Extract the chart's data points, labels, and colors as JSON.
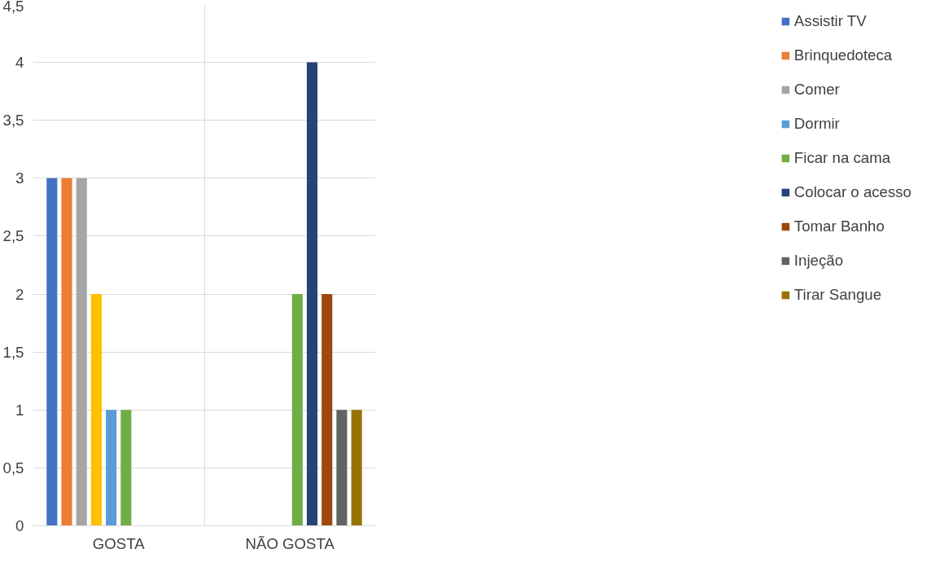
{
  "chart_data": {
    "type": "bar",
    "categories": [
      "GOSTA",
      "NÃO GOSTA"
    ],
    "series": [
      {
        "name": "Assistir TV",
        "color": "#4472c4",
        "values": [
          3,
          null
        ]
      },
      {
        "name": "Brinquedoteca",
        "color": "#ed7d31",
        "values": [
          3,
          null
        ]
      },
      {
        "name": "Comer",
        "color": "#a5a5a5",
        "values": [
          3,
          null
        ]
      },
      {
        "color": "#ffc000",
        "values": [
          2,
          null
        ]
      },
      {
        "name": "Dormir",
        "color": "#5b9bd5",
        "values": [
          1,
          null
        ]
      },
      {
        "name": "Ficar na cama",
        "color": "#70ad47",
        "values": [
          1,
          2
        ]
      },
      {
        "name": "Colocar o acesso",
        "color": "#264478",
        "values": [
          null,
          4
        ]
      },
      {
        "name": "Tomar Banho",
        "color": "#9e480e",
        "values": [
          null,
          2
        ]
      },
      {
        "name": "Injeção",
        "color": "#636363",
        "values": [
          null,
          1
        ]
      },
      {
        "name": "Tirar Sangue",
        "color": "#997300",
        "values": [
          null,
          1
        ]
      }
    ],
    "ylim": [
      0,
      4.5
    ],
    "yticks": [
      0,
      {
        "value": 0.5,
        "label": "0,5"
      },
      1,
      {
        "value": 1.5,
        "label": "1,5"
      },
      2,
      {
        "value": 2.5,
        "label": "2,5"
      },
      3,
      {
        "value": 3.5,
        "label": "3,5"
      },
      4,
      {
        "value": 4.5,
        "label": "4,5"
      }
    ],
    "grid": true,
    "legend": "right"
  }
}
